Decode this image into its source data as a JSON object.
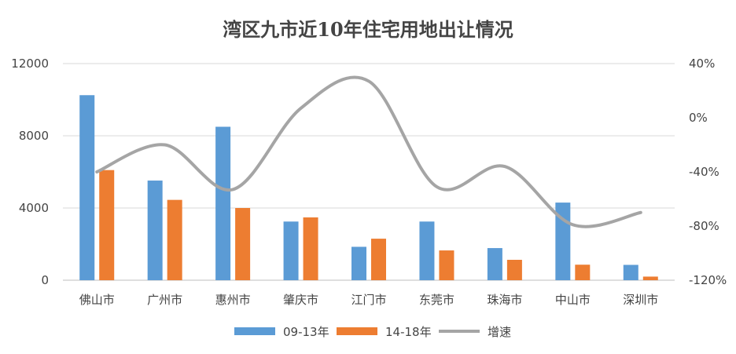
{
  "chart_data": {
    "type": "bar",
    "title": "湾区九市近10年住宅用地出让情况",
    "categories": [
      "佛山市",
      "广州市",
      "惠州市",
      "肇庆市",
      "江门市",
      "东莞市",
      "珠海市",
      "中山市",
      "深圳市"
    ],
    "series": [
      {
        "name": "09-13年",
        "type": "bar",
        "axis": "left",
        "color": "#5B9BD5",
        "values": [
          10250,
          5520,
          8500,
          3250,
          1850,
          3250,
          1780,
          4300,
          850
        ]
      },
      {
        "name": "14-18年",
        "type": "bar",
        "axis": "left",
        "color": "#ED7D31",
        "values": [
          6100,
          4450,
          4000,
          3480,
          2300,
          1650,
          1130,
          860,
          200
        ]
      },
      {
        "name": "增速",
        "type": "line",
        "axis": "right",
        "color": "#A5A5A5",
        "values": [
          -40,
          -20,
          -53,
          7,
          27,
          -51,
          -36,
          -79,
          -70
        ]
      }
    ],
    "yAxisLeft": {
      "ylim": [
        0,
        12000
      ],
      "ticks": [
        0,
        4000,
        8000,
        12000
      ],
      "tick_labels": [
        "0",
        "4000",
        "8000",
        "12000"
      ]
    },
    "yAxisRight": {
      "ylim": [
        -120,
        40
      ],
      "ticks": [
        -120,
        -80,
        -40,
        0,
        40
      ],
      "tick_labels": [
        "-120%",
        "-80%",
        "-40%",
        "0%",
        "40%"
      ]
    },
    "grid": true,
    "legend": "bottom"
  }
}
